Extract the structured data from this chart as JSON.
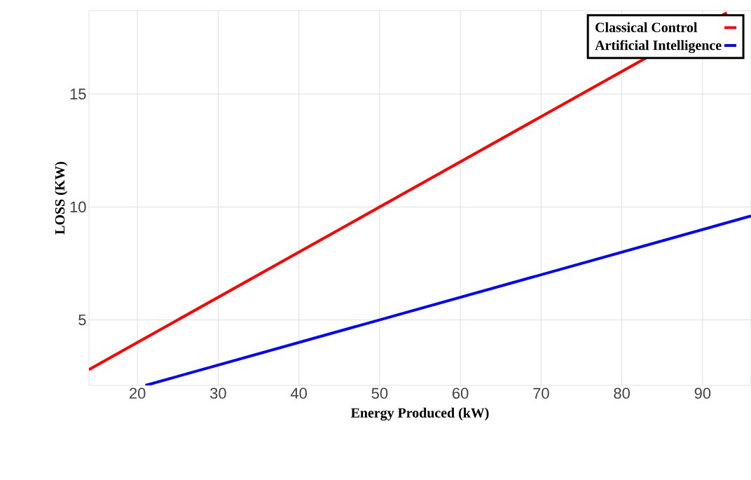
{
  "chart_data": {
    "type": "line",
    "xlabel": "Energy Produced  (kW)",
    "ylabel": "LOSS (KW)",
    "series": [
      {
        "name": "Classical Control",
        "color": "#ff0000",
        "x": [
          14,
          93
        ],
        "values": [
          2.8,
          18.6
        ]
      },
      {
        "name": "Artificial Intelligence",
        "color": "#0000ff",
        "x": [
          21,
          96
        ],
        "values": [
          2.1,
          9.6
        ]
      }
    ],
    "xlim": [
      14,
      96
    ],
    "ylim": [
      2.1,
      18.7
    ],
    "xticks": [
      20,
      30,
      40,
      50,
      60,
      70,
      80,
      90
    ],
    "yticks": [
      5,
      10,
      15
    ],
    "grid": true,
    "legend": "top right",
    "marker": "none",
    "line_style": "solid"
  }
}
